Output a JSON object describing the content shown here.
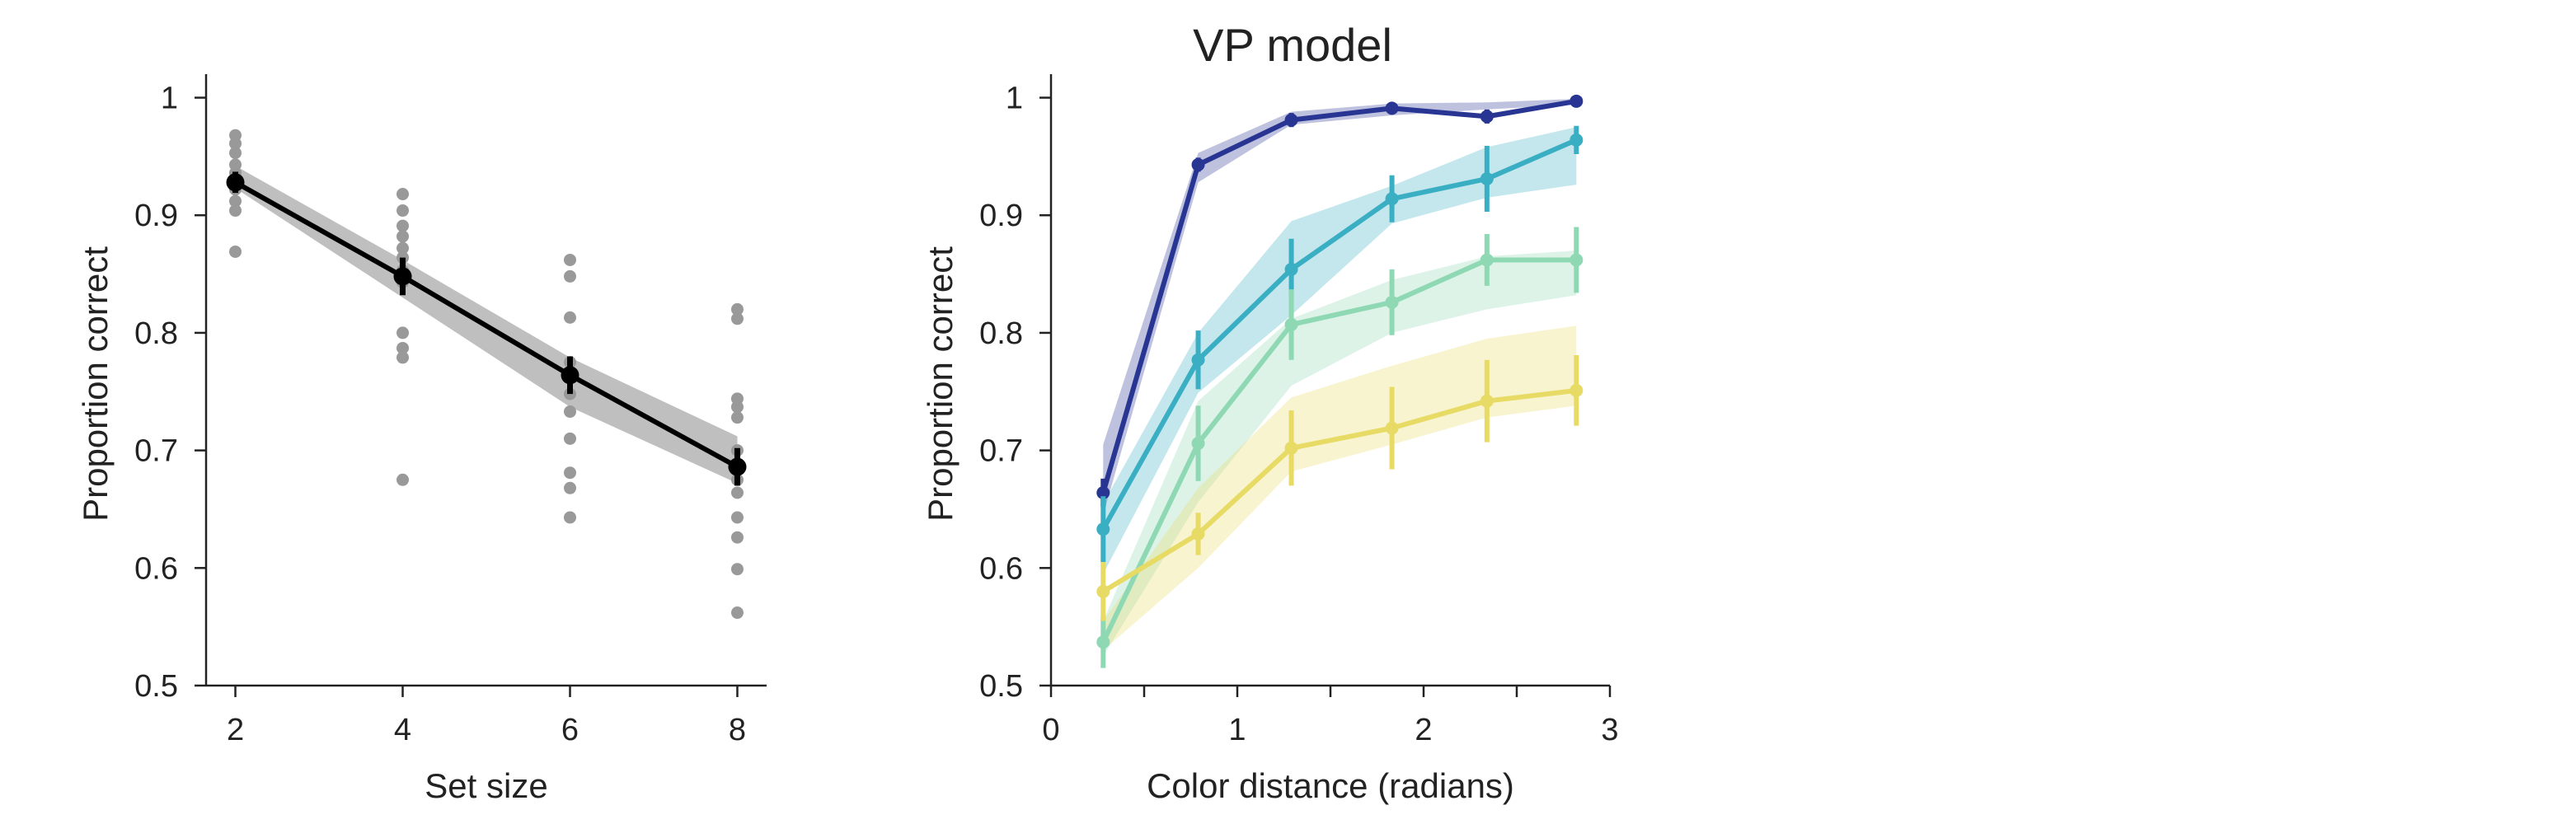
{
  "figure": {
    "title": "VP model"
  },
  "chart_data": [
    {
      "type": "line",
      "title": "",
      "xlabel": "Set size",
      "ylabel": "Proportion correct",
      "xlim": [
        1.65,
        8.35
      ],
      "ylim": [
        0.5,
        1.02
      ],
      "x_ticks": [
        2,
        4,
        6,
        8
      ],
      "y_ticks": [
        0.5,
        0.6,
        0.7,
        0.8,
        0.9,
        1
      ],
      "x_tick_labels": [
        "2",
        "4",
        "6",
        "8"
      ],
      "y_tick_labels": [
        "0.5",
        "0.6",
        "0.7",
        "0.8",
        "0.9",
        "1"
      ],
      "grid": false,
      "colors": {
        "mean": "#000000",
        "subjects": "#999999",
        "model_band": "#bfbfbf"
      },
      "series": [
        {
          "kind": "mean_with_error",
          "x": [
            2,
            4,
            6,
            8
          ],
          "y": [
            0.928,
            0.848,
            0.764,
            0.686
          ],
          "err": [
            0.009,
            0.016,
            0.016,
            0.016
          ]
        },
        {
          "kind": "model_band",
          "x": [
            2,
            4,
            6,
            8
          ],
          "lower": [
            0.923,
            0.83,
            0.737,
            0.672
          ],
          "upper": [
            0.942,
            0.862,
            0.779,
            0.712
          ]
        },
        {
          "kind": "individual_points",
          "points": [
            [
              2,
              0.968
            ],
            [
              2,
              0.961
            ],
            [
              2,
              0.953
            ],
            [
              2,
              0.943
            ],
            [
              2,
              0.936
            ],
            [
              2,
              0.929
            ],
            [
              2,
              0.922
            ],
            [
              2,
              0.912
            ],
            [
              2,
              0.904
            ],
            [
              2,
              0.869
            ],
            [
              4,
              0.918
            ],
            [
              4,
              0.904
            ],
            [
              4,
              0.891
            ],
            [
              4,
              0.882
            ],
            [
              4,
              0.872
            ],
            [
              4,
              0.864
            ],
            [
              4,
              0.853
            ],
            [
              4,
              0.843
            ],
            [
              4,
              0.8
            ],
            [
              4,
              0.787
            ],
            [
              4,
              0.779
            ],
            [
              4,
              0.675
            ],
            [
              6,
              0.862
            ],
            [
              6,
              0.848
            ],
            [
              6,
              0.813
            ],
            [
              6,
              0.775
            ],
            [
              6,
              0.748
            ],
            [
              6,
              0.733
            ],
            [
              6,
              0.71
            ],
            [
              6,
              0.681
            ],
            [
              6,
              0.668
            ],
            [
              6,
              0.643
            ],
            [
              8,
              0.82
            ],
            [
              8,
              0.812
            ],
            [
              8,
              0.744
            ],
            [
              8,
              0.737
            ],
            [
              8,
              0.728
            ],
            [
              8,
              0.7
            ],
            [
              8,
              0.675
            ],
            [
              8,
              0.664
            ],
            [
              8,
              0.643
            ],
            [
              8,
              0.626
            ],
            [
              8,
              0.599
            ],
            [
              8,
              0.562
            ]
          ]
        }
      ]
    },
    {
      "type": "line",
      "title": "VP model",
      "xlabel": "Color distance (radians)",
      "ylabel": "Proportion correct",
      "xlim": [
        0,
        3
      ],
      "ylim": [
        0.5,
        1.02
      ],
      "x_ticks": [
        0,
        0.5,
        1,
        1.5,
        2,
        2.5,
        3
      ],
      "x_tick_labels": [
        "0",
        "",
        "1",
        "",
        "2",
        "",
        "3"
      ],
      "y_ticks": [
        0.5,
        0.6,
        0.7,
        0.8,
        0.9,
        1
      ],
      "y_tick_labels": [
        "0.5",
        "0.6",
        "0.7",
        "0.8",
        "0.9",
        "1"
      ],
      "grid": false,
      "x": [
        0.28,
        0.79,
        1.29,
        1.83,
        2.34,
        2.82
      ],
      "series": [
        {
          "color": "#283593",
          "y": [
            0.664,
            0.943,
            0.981,
            0.991,
            0.984,
            0.997
          ],
          "err": [
            0.012,
            0.006,
            0.006,
            0.005,
            0.006,
            0.003
          ],
          "band_lower": [
            0.645,
            0.928,
            0.977,
            0.985,
            0.99,
            0.994
          ],
          "band_upper": [
            0.705,
            0.953,
            0.988,
            0.995,
            0.996,
            0.999
          ]
        },
        {
          "color": "#3aafc3",
          "y": [
            0.633,
            0.777,
            0.854,
            0.914,
            0.931,
            0.964
          ],
          "err": [
            0.028,
            0.025,
            0.026,
            0.02,
            0.028,
            0.012
          ],
          "band_lower": [
            0.595,
            0.749,
            0.815,
            0.893,
            0.915,
            0.926
          ],
          "band_upper": [
            0.655,
            0.8,
            0.895,
            0.925,
            0.958,
            0.975
          ]
        },
        {
          "color": "#8fd8b4",
          "y": [
            0.537,
            0.706,
            0.807,
            0.826,
            0.862,
            0.862
          ],
          "err": [
            0.022,
            0.032,
            0.03,
            0.028,
            0.022,
            0.028
          ],
          "band_lower": [
            0.525,
            0.656,
            0.755,
            0.8,
            0.82,
            0.832
          ],
          "band_upper": [
            0.555,
            0.742,
            0.812,
            0.845,
            0.865,
            0.87
          ]
        },
        {
          "color": "#e7db65",
          "y": [
            0.58,
            0.629,
            0.702,
            0.719,
            0.742,
            0.751
          ],
          "err": [
            0.025,
            0.018,
            0.032,
            0.035,
            0.035,
            0.03
          ],
          "band_lower": [
            0.53,
            0.6,
            0.682,
            0.705,
            0.728,
            0.738
          ],
          "band_upper": [
            0.555,
            0.668,
            0.745,
            0.772,
            0.795,
            0.806
          ]
        }
      ]
    }
  ]
}
